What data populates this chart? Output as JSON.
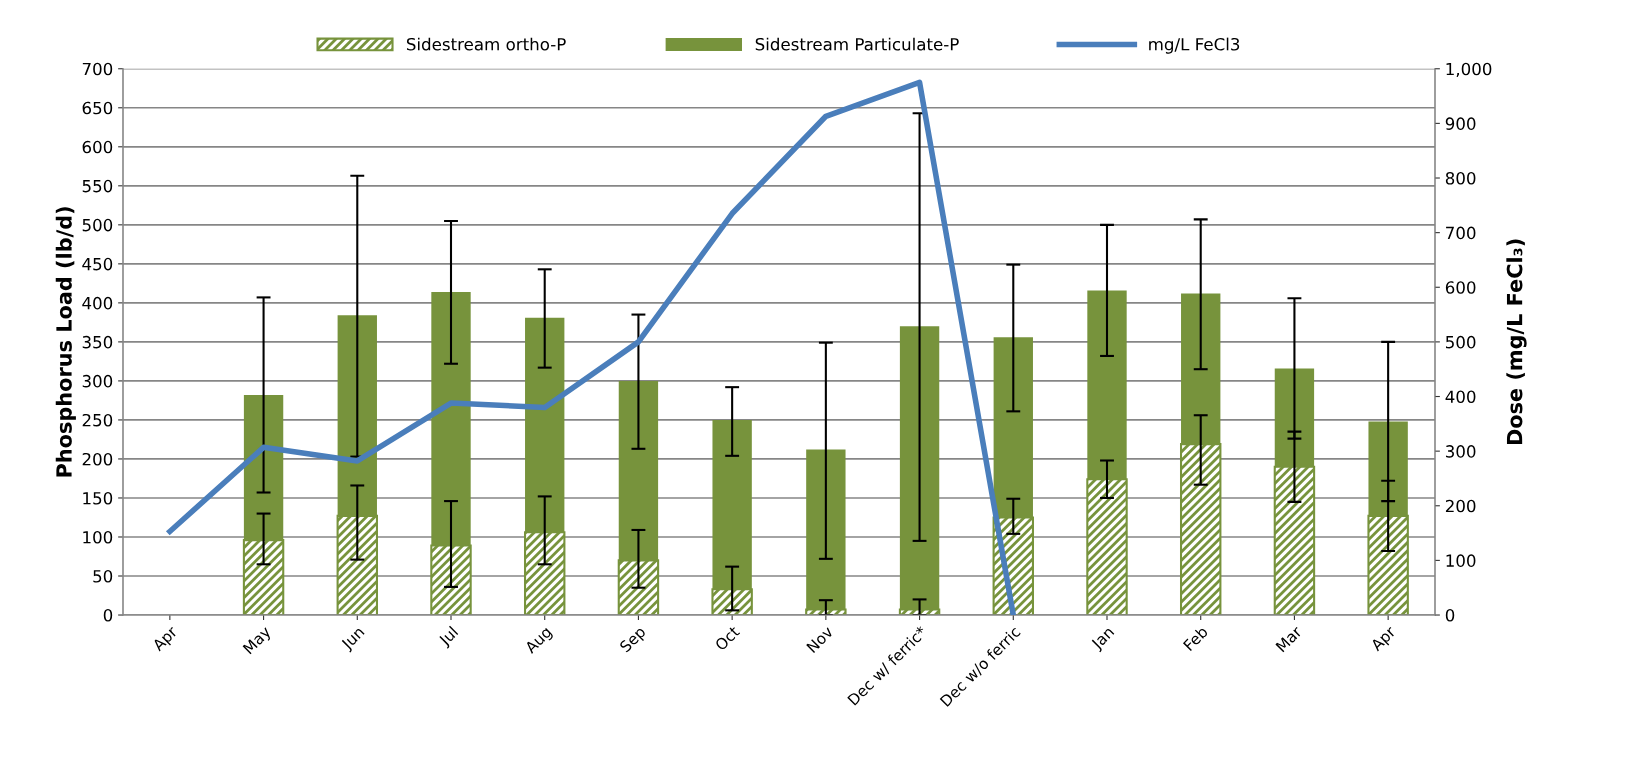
{
  "chart_data": {
    "type": "bar",
    "stacked": true,
    "ylabel": "Phosphorus Load (lb/d)",
    "y2label": "Dose (mg/L FeCl₃)",
    "categories": [
      "Apr",
      "May",
      "Jun",
      "Jul",
      "Aug",
      "Sep",
      "Oct",
      "Nov",
      "Dec w/ ferric*",
      "Dec w/o ferric",
      "Jan",
      "Feb",
      "Mar",
      "Apr"
    ],
    "series": [
      {
        "name": "Sidestream ortho-P",
        "color": "#77933c",
        "values": [
          null,
          96,
          127,
          89,
          106,
          70,
          33,
          7,
          7,
          125,
          174,
          219,
          190,
          127
        ],
        "errors": [
          null,
          [
            65,
            130
          ],
          [
            71,
            166
          ],
          [
            36,
            146
          ],
          [
            65,
            152
          ],
          [
            35,
            109
          ],
          [
            6,
            62
          ],
          [
            0,
            19
          ],
          [
            0,
            20
          ],
          [
            104,
            149
          ],
          [
            150,
            198
          ],
          [
            167,
            256
          ],
          [
            145,
            235
          ],
          [
            82,
            172
          ]
        ]
      },
      {
        "name": "Sidestream Particulate-P",
        "color": "#77933c",
        "values": [
          null,
          186,
          257,
          325,
          275,
          230,
          217,
          205,
          363,
          231,
          242,
          193,
          126,
          121
        ],
        "errors": [
          null,
          [
            157,
            407
          ],
          [
            203,
            563
          ],
          [
            322,
            505
          ],
          [
            317,
            443
          ],
          [
            213,
            385
          ],
          [
            204,
            292
          ],
          [
            72,
            349
          ],
          [
            95,
            643
          ],
          [
            261,
            449
          ],
          [
            332,
            500
          ],
          [
            315,
            507
          ],
          [
            226,
            406
          ],
          [
            146,
            350
          ]
        ]
      },
      {
        "name": "mg/L FeCl3",
        "type": "line",
        "axis": "y2",
        "color": "#4a7ebb",
        "values": [
          153,
          307,
          282,
          388,
          380,
          500,
          735,
          913,
          975,
          0,
          null,
          null,
          null,
          null
        ]
      }
    ],
    "ylim": [
      0,
      700
    ],
    "yticks": [
      0,
      50,
      100,
      150,
      200,
      250,
      300,
      350,
      400,
      450,
      500,
      550,
      600,
      650,
      700
    ],
    "y2lim": [
      0,
      1000
    ],
    "y2ticks": [
      0,
      100,
      200,
      300,
      400,
      500,
      600,
      700,
      800,
      900,
      {
        "value": 1000,
        "label": "1,000"
      }
    ],
    "grid": "y",
    "legend": "top"
  }
}
